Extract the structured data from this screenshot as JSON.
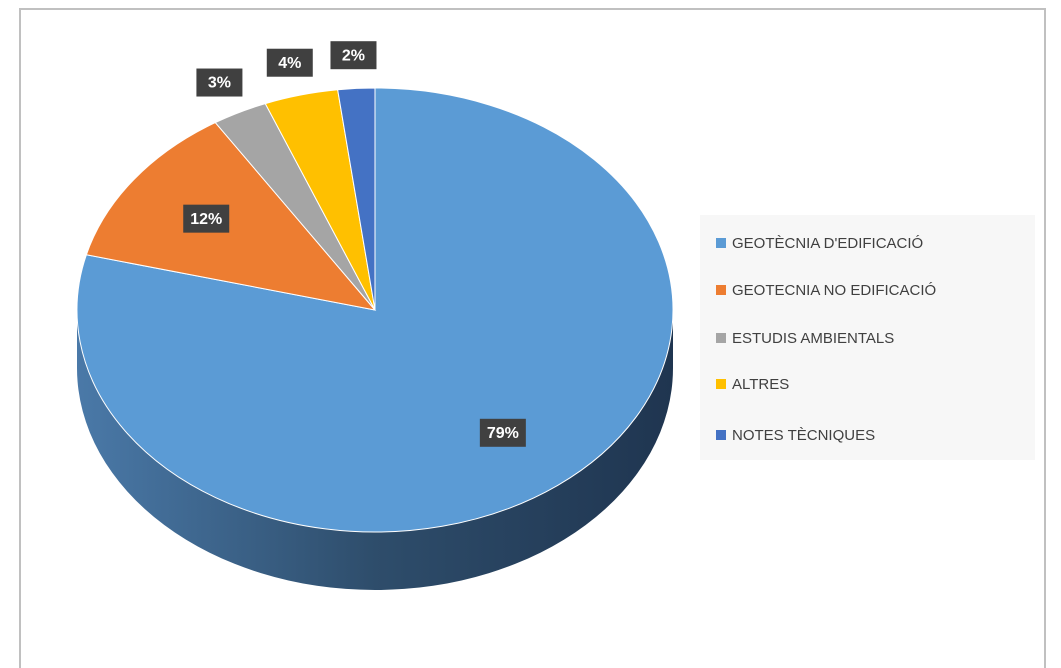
{
  "chart_data": {
    "type": "pie",
    "categories": [
      "GEOTÈCNIA D'EDIFICACIÓ",
      "GEOTECNIA NO EDIFICACIÓ",
      "ESTUDIS AMBIENTALS",
      "ALTRES",
      "NOTES TÈCNIQUES"
    ],
    "values": [
      79,
      12,
      3,
      4,
      2
    ],
    "value_labels": [
      "79%",
      "12%",
      "3%",
      "4%",
      "2%"
    ],
    "colors": [
      "#5b9bd5",
      "#ed7d31",
      "#a5a5a5",
      "#ffc000",
      "#4472c4"
    ],
    "legend": "right"
  }
}
